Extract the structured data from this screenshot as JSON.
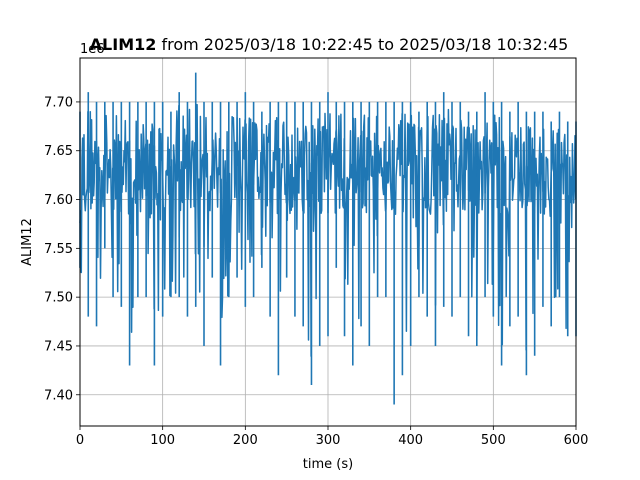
{
  "chart_data": {
    "type": "line",
    "title_bold": "ALIM12",
    "title_rest": " from 2025/03/18 10:22:45 to 2025/03/18 10:32:45",
    "xlabel": "time (s)",
    "ylabel": "ALIM12",
    "y_offset_label": "1e6",
    "xlim": [
      0,
      600
    ],
    "ylim": [
      7.368,
      7.745
    ],
    "x_ticks": [
      0,
      100,
      200,
      300,
      400,
      500,
      600
    ],
    "x_tick_labels": [
      "0",
      "100",
      "200",
      "300",
      "400",
      "500",
      "600"
    ],
    "y_ticks": [
      7.4,
      7.45,
      7.5,
      7.55,
      7.6,
      7.65,
      7.7
    ],
    "y_tick_labels": [
      "7.40",
      "7.45",
      "7.50",
      "7.55",
      "7.60",
      "7.65",
      "7.70"
    ],
    "grid": true,
    "series": [
      {
        "color": "#1f77b4",
        "x": [
          0,
          10,
          20,
          30,
          40,
          50,
          60,
          70,
          80,
          90,
          100,
          110,
          120,
          130,
          140,
          150,
          160,
          170,
          180,
          190,
          200,
          210,
          220,
          230,
          240,
          250,
          260,
          270,
          280,
          290,
          300,
          310,
          320,
          330,
          340,
          350,
          360,
          370,
          380,
          390,
          400,
          410,
          420,
          430,
          440,
          450,
          460,
          470,
          480,
          490,
          500,
          510,
          520,
          530,
          540,
          550,
          560,
          570,
          580,
          590,
          600
        ],
        "y_max": [
          7.69,
          7.71,
          7.7,
          7.7,
          7.7,
          7.7,
          7.7,
          7.7,
          7.7,
          7.7,
          7.7,
          7.69,
          7.71,
          7.7,
          7.73,
          7.7,
          7.7,
          7.7,
          7.7,
          7.7,
          7.71,
          7.7,
          7.69,
          7.7,
          7.7,
          7.7,
          7.7,
          7.7,
          7.7,
          7.7,
          7.71,
          7.7,
          7.7,
          7.7,
          7.7,
          7.7,
          7.7,
          7.7,
          7.7,
          7.7,
          7.7,
          7.69,
          7.7,
          7.7,
          7.71,
          7.7,
          7.7,
          7.69,
          7.69,
          7.71,
          7.7,
          7.7,
          7.69,
          7.7,
          7.69,
          7.69,
          7.69,
          7.68,
          7.69,
          7.68,
          7.68
        ],
        "y_min": [
          7.53,
          7.48,
          7.47,
          7.55,
          7.5,
          7.49,
          7.43,
          7.5,
          7.5,
          7.43,
          7.48,
          7.5,
          7.5,
          7.48,
          7.49,
          7.45,
          7.52,
          7.43,
          7.5,
          7.52,
          7.49,
          7.5,
          7.53,
          7.48,
          7.42,
          7.52,
          7.48,
          7.47,
          7.41,
          7.45,
          7.46,
          7.53,
          7.46,
          7.43,
          7.47,
          7.45,
          7.5,
          7.5,
          7.39,
          7.42,
          7.45,
          7.5,
          7.48,
          7.45,
          7.49,
          7.48,
          7.5,
          7.46,
          7.45,
          7.5,
          7.48,
          7.43,
          7.47,
          7.48,
          7.42,
          7.44,
          7.49,
          7.47,
          7.5,
          7.46,
          7.46
        ]
      }
    ]
  }
}
